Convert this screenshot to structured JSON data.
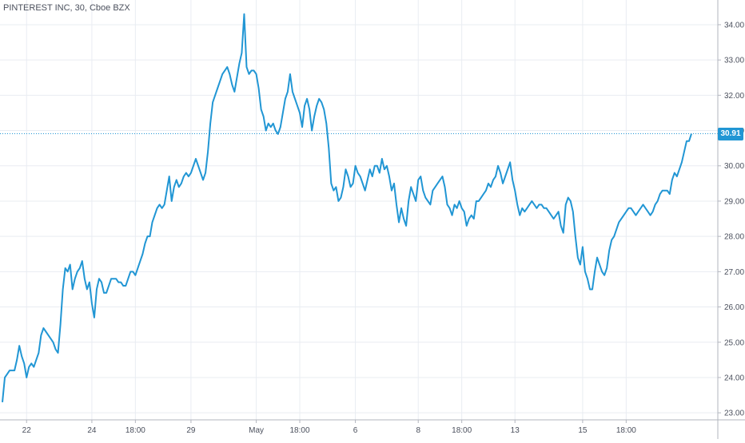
{
  "header": {
    "title": "PINTEREST INC, 30, Cboe BZX"
  },
  "colors": {
    "line": "#2196d4",
    "grid": "#e9ecf2",
    "axis_text": "#4a4f5c",
    "last_price_badge": "#2196d4",
    "background": "#ffffff"
  },
  "chart_data": {
    "type": "line",
    "title": "PINTEREST INC, 30, Cboe BZX",
    "xlabel": "",
    "ylabel": "",
    "ylim": [
      22.8,
      34.7
    ],
    "grid": true,
    "y_ticks": [
      "23.00",
      "24.00",
      "25.00",
      "26.00",
      "27.00",
      "28.00",
      "29.00",
      "30.00",
      "31.00",
      "32.00",
      "33.00",
      "34.00"
    ],
    "y_tick_values": [
      23,
      24,
      25,
      26,
      27,
      28,
      29,
      30,
      31,
      32,
      33,
      34
    ],
    "x_ticks": [
      {
        "label": "22",
        "i": 10
      },
      {
        "label": "24",
        "i": 37
      },
      {
        "label": "18:00",
        "i": 55
      },
      {
        "label": "29",
        "i": 78
      },
      {
        "label": "May",
        "i": 105
      },
      {
        "label": "18:00",
        "i": 123
      },
      {
        "label": "6",
        "i": 146
      },
      {
        "label": "8",
        "i": 172
      },
      {
        "label": "18:00",
        "i": 190
      },
      {
        "label": "13",
        "i": 212
      },
      {
        "label": "15",
        "i": 240
      },
      {
        "label": "18:00",
        "i": 258
      }
    ],
    "last_price": 30.91,
    "last_price_label": "30.91",
    "series": [
      {
        "values": [
          23.3,
          24.0,
          24.1,
          24.2,
          24.2,
          24.2,
          24.5,
          24.9,
          24.6,
          24.4,
          24.0,
          24.3,
          24.4,
          24.3,
          24.5,
          24.7,
          25.2,
          25.4,
          25.3,
          25.2,
          25.1,
          25.0,
          24.8,
          24.7,
          25.5,
          26.5,
          27.1,
          27.0,
          27.2,
          26.5,
          26.8,
          27.0,
          27.1,
          27.3,
          26.8,
          26.5,
          26.7,
          26.1,
          25.7,
          26.5,
          26.8,
          26.7,
          26.4,
          26.4,
          26.6,
          26.8,
          26.8,
          26.8,
          26.7,
          26.7,
          26.6,
          26.6,
          26.8,
          27.0,
          27.0,
          26.9,
          27.1,
          27.3,
          27.5,
          27.8,
          28.0,
          28.0,
          28.4,
          28.6,
          28.8,
          28.9,
          28.8,
          28.9,
          29.3,
          29.7,
          29.0,
          29.4,
          29.6,
          29.4,
          29.5,
          29.7,
          29.8,
          29.7,
          29.8,
          30.0,
          30.2,
          30.0,
          29.8,
          29.6,
          29.8,
          30.4,
          31.2,
          31.8,
          32.0,
          32.2,
          32.4,
          32.6,
          32.7,
          32.8,
          32.6,
          32.3,
          32.1,
          32.5,
          32.9,
          33.2,
          34.3,
          32.8,
          32.6,
          32.7,
          32.7,
          32.6,
          32.2,
          31.6,
          31.4,
          31.0,
          31.2,
          31.1,
          31.2,
          31.0,
          30.9,
          31.1,
          31.5,
          31.9,
          32.1,
          32.6,
          32.1,
          31.9,
          31.7,
          31.5,
          31.1,
          31.7,
          31.9,
          31.6,
          31.0,
          31.4,
          31.7,
          31.9,
          31.8,
          31.6,
          31.2,
          30.5,
          29.5,
          29.3,
          29.4,
          29.0,
          29.1,
          29.4,
          29.9,
          29.7,
          29.4,
          29.5,
          30.0,
          29.8,
          29.7,
          29.5,
          29.3,
          29.6,
          29.9,
          29.7,
          30.0,
          30.0,
          29.8,
          30.2,
          29.9,
          30.0,
          29.7,
          29.3,
          29.5,
          28.9,
          28.4,
          28.8,
          28.5,
          28.3,
          29.0,
          29.4,
          29.2,
          29.0,
          29.6,
          29.7,
          29.3,
          29.1,
          29.0,
          28.9,
          29.3,
          29.4,
          29.5,
          29.6,
          29.7,
          29.4,
          28.9,
          28.8,
          28.6,
          28.9,
          28.8,
          29.0,
          28.8,
          28.7,
          28.3,
          28.5,
          28.6,
          28.5,
          29.0,
          29.0,
          29.1,
          29.2,
          29.3,
          29.5,
          29.4,
          29.6,
          29.7,
          30.0,
          29.8,
          29.5,
          29.7,
          29.9,
          30.1,
          29.6,
          29.3,
          28.9,
          28.6,
          28.8,
          28.7,
          28.8,
          28.9,
          29.0,
          28.9,
          28.8,
          28.9,
          28.9,
          28.8,
          28.8,
          28.7,
          28.6,
          28.5,
          28.6,
          28.7,
          28.3,
          28.1,
          28.9,
          29.1,
          29.0,
          28.7,
          28.0,
          27.4,
          27.2,
          27.7,
          27.0,
          26.8,
          26.5,
          26.5,
          27.0,
          27.4,
          27.2,
          27.0,
          26.9,
          27.1,
          27.6,
          27.9,
          28.0,
          28.2,
          28.4,
          28.5,
          28.6,
          28.7,
          28.8,
          28.8,
          28.7,
          28.6,
          28.7,
          28.8,
          28.9,
          28.8,
          28.7,
          28.6,
          28.7,
          28.9,
          29.0,
          29.2,
          29.3,
          29.3,
          29.3,
          29.2,
          29.6,
          29.8,
          29.7,
          29.9,
          30.1,
          30.4,
          30.7,
          30.7,
          30.91
        ]
      }
    ]
  }
}
